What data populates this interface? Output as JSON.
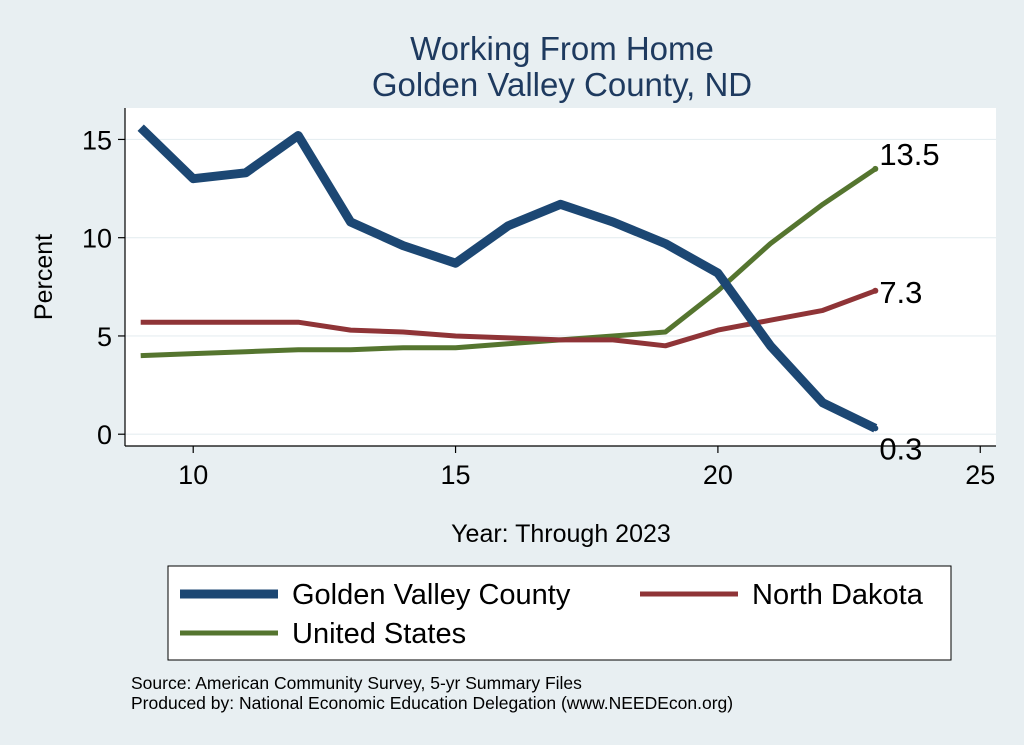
{
  "chart_data": {
    "type": "line",
    "title": [
      "Working From Home",
      "Golden Valley County, ND"
    ],
    "xlabel": "Year: Through 2023",
    "ylabel": "Percent",
    "xlim": [
      8.7,
      25.3
    ],
    "ylim": [
      -0.6,
      16.6
    ],
    "xticks": [
      10,
      15,
      20,
      25
    ],
    "yticks": [
      0,
      5,
      10,
      15
    ],
    "grid": true,
    "legend_position": "bottom",
    "series": [
      {
        "name": "Golden Valley County",
        "color": "#1c4773",
        "width": 9,
        "x": [
          9,
          10,
          11,
          12,
          13,
          14,
          15,
          16,
          17,
          18,
          19,
          20,
          21,
          22,
          23
        ],
        "values": [
          15.6,
          13.0,
          13.3,
          15.2,
          10.8,
          9.6,
          8.7,
          10.6,
          11.7,
          10.8,
          9.7,
          8.2,
          4.5,
          1.6,
          0.3
        ],
        "end_label": "0.3"
      },
      {
        "name": "North Dakota",
        "color": "#8f3437",
        "width": 5,
        "x": [
          9,
          10,
          11,
          12,
          13,
          14,
          15,
          16,
          17,
          18,
          19,
          20,
          21,
          22,
          23
        ],
        "values": [
          5.7,
          5.7,
          5.7,
          5.7,
          5.3,
          5.2,
          5.0,
          4.9,
          4.8,
          4.8,
          4.5,
          5.3,
          5.8,
          6.3,
          7.3
        ],
        "end_label": "7.3"
      },
      {
        "name": "United States",
        "color": "#55752f",
        "width": 5,
        "x": [
          9,
          10,
          11,
          12,
          13,
          14,
          15,
          16,
          17,
          18,
          19,
          20,
          21,
          22,
          23
        ],
        "values": [
          4.0,
          4.1,
          4.2,
          4.3,
          4.3,
          4.4,
          4.4,
          4.6,
          4.8,
          5.0,
          5.2,
          7.3,
          9.7,
          11.7,
          13.5
        ],
        "end_label": "13.5"
      }
    ]
  },
  "source_lines": [
    "Source: American Community Survey, 5-yr Summary Files",
    "Produced by: National Economic Education Delegation (www.NEEDEcon.org)"
  ]
}
